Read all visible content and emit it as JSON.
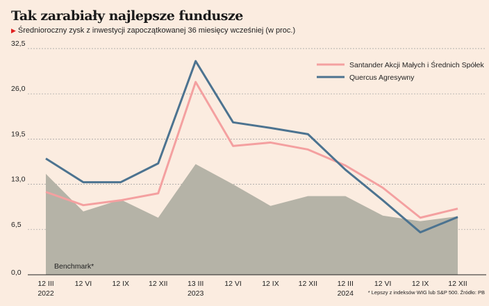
{
  "chart_data": {
    "type": "line",
    "title": "Tak zarabiały najlepsze fundusze",
    "subtitle": "Średnioroczny zysk z inwestycji zapoczątkowanej 36 miesięcy wcześniej (w proc.)",
    "xlabel": "",
    "ylabel": "",
    "ylim": [
      0,
      32.5
    ],
    "yticks": [
      "0,0",
      "6,5",
      "13,0",
      "19,5",
      "26,0",
      "32,5"
    ],
    "categories": [
      [
        "12 III",
        "2022"
      ],
      [
        "12 VI",
        ""
      ],
      [
        "12 IX",
        ""
      ],
      [
        "12 XII",
        ""
      ],
      [
        "13 III",
        "2023"
      ],
      [
        "12 VI",
        ""
      ],
      [
        "12 IX",
        ""
      ],
      [
        "12 XII",
        ""
      ],
      [
        "12 III",
        "2024"
      ],
      [
        "12 VI",
        ""
      ],
      [
        "12 IX",
        ""
      ],
      [
        "12 XII",
        ""
      ]
    ],
    "series": [
      {
        "name": "Benchmark*",
        "type": "area",
        "color": "#b5b3a7",
        "values": [
          14.5,
          9.1,
          10.8,
          8.2,
          15.9,
          13.0,
          9.9,
          11.3,
          11.3,
          8.5,
          7.7,
          8.4
        ]
      },
      {
        "name": "Santander Akcji Małych i Średnich Spółek",
        "type": "line",
        "color": "#f4a0a0",
        "values": [
          11.9,
          10.0,
          10.7,
          11.7,
          27.7,
          18.5,
          19.0,
          18.0,
          15.7,
          12.5,
          8.2,
          9.5
        ]
      },
      {
        "name": "Quercus Agresywny",
        "type": "line",
        "color": "#4c7390",
        "values": [
          16.7,
          13.3,
          13.3,
          16.0,
          30.7,
          21.9,
          21.1,
          20.2,
          15.1,
          10.7,
          6.1,
          8.3
        ]
      }
    ],
    "grid": true,
    "legend": "top-right",
    "footnote": "* Lepszy z indeksów WIG lub S&P 500. Źródło: PB"
  }
}
